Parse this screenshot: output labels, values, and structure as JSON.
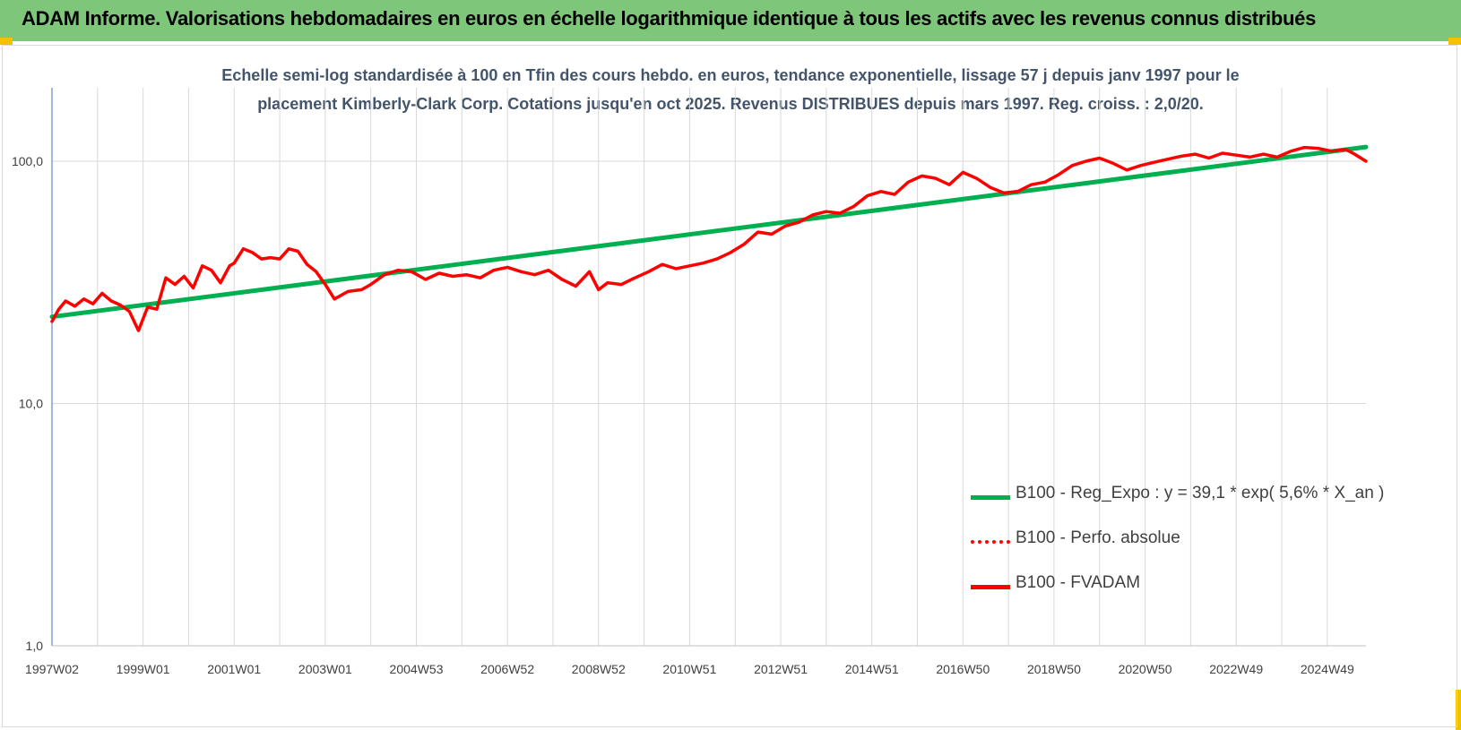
{
  "header": {
    "title": "ADAM Informe. Valorisations hebdomadaires en euros en échelle logarithmique identique à tous les actifs avec les revenus connus distribués"
  },
  "chart_data": {
    "type": "line",
    "title_line1": "Echelle semi-log standardisée à 100 en Tfin des cours hebdo. en euros, tendance exponentielle, lissage 57 j depuis janv 1997 pour le",
    "title_line2": "placement Kimberly-Clark Corp. Cotations jusqu'en oct 2025. Revenus DISTRIBUES depuis mars 1997. Reg. croiss. : 2,0/20.",
    "y_scale": "log",
    "ylim": [
      1,
      100
    ],
    "y_ticks": [
      {
        "value": 1,
        "label": "1,0"
      },
      {
        "value": 10,
        "label": "10,0"
      },
      {
        "value": 100,
        "label": "100,0"
      }
    ],
    "x_ticks": [
      "1997W02",
      "1999W01",
      "2001W01",
      "2003W01",
      "2004W53",
      "2006W52",
      "2008W52",
      "2010W51",
      "2012W51",
      "2014W51",
      "2016W50",
      "2018W50",
      "2020W50",
      "2022W49",
      "2024W49"
    ],
    "x_tick_years": [
      1997.0,
      1999.0,
      2001.0,
      2003.0,
      2005.0,
      2007.0,
      2009.0,
      2011.0,
      2013.0,
      2015.0,
      2017.0,
      2019.0,
      2021.0,
      2023.0,
      2025.0
    ],
    "x_range_years": [
      1997.0,
      2025.85
    ],
    "grid": {
      "vertical": true,
      "horizontal": true
    },
    "legend_position": "bottom-right",
    "series": [
      {
        "name": "B100 - Reg_Expo : y = 39,1 * exp( 5,6% *  X_an )",
        "color": "#00b050",
        "style": "solid",
        "x": [
          1997.0,
          2025.85
        ],
        "y": [
          22.8,
          114.5
        ]
      },
      {
        "name": "B100 - Perfo. absolue",
        "color": "#ff0000",
        "style": "dotted",
        "x": [],
        "y": []
      },
      {
        "name": "B100 - FVADAM",
        "color": "#ff0000",
        "style": "solid",
        "x": [
          1997.0,
          1997.15,
          1997.3,
          1997.5,
          1997.7,
          1997.9,
          1998.1,
          1998.3,
          1998.5,
          1998.7,
          1998.9,
          1999.1,
          1999.3,
          1999.5,
          1999.7,
          1999.9,
          2000.1,
          2000.3,
          2000.5,
          2000.7,
          2000.9,
          2001.0,
          2001.2,
          2001.4,
          2001.6,
          2001.8,
          2002.0,
          2002.2,
          2002.4,
          2002.6,
          2002.8,
          2003.0,
          2003.2,
          2003.5,
          2003.8,
          2004.0,
          2004.3,
          2004.6,
          2004.9,
          2005.2,
          2005.5,
          2005.8,
          2006.1,
          2006.4,
          2006.7,
          2007.0,
          2007.3,
          2007.6,
          2007.9,
          2008.2,
          2008.5,
          2008.8,
          2009.0,
          2009.2,
          2009.5,
          2009.8,
          2010.1,
          2010.4,
          2010.7,
          2011.0,
          2011.3,
          2011.6,
          2011.9,
          2012.2,
          2012.5,
          2012.8,
          2013.1,
          2013.4,
          2013.7,
          2014.0,
          2014.3,
          2014.6,
          2014.9,
          2015.2,
          2015.5,
          2015.8,
          2016.1,
          2016.4,
          2016.7,
          2017.0,
          2017.3,
          2017.6,
          2017.9,
          2018.2,
          2018.5,
          2018.8,
          2019.1,
          2019.4,
          2019.7,
          2020.0,
          2020.3,
          2020.6,
          2020.9,
          2021.2,
          2021.5,
          2021.8,
          2022.1,
          2022.4,
          2022.7,
          2023.0,
          2023.3,
          2023.6,
          2023.9,
          2024.2,
          2024.5,
          2024.8,
          2025.1,
          2025.4,
          2025.6,
          2025.85
        ],
        "y": [
          21.8,
          24.5,
          26.5,
          25.2,
          27.0,
          25.8,
          28.5,
          26.5,
          25.5,
          24.0,
          20.0,
          25.0,
          24.5,
          33.0,
          31.0,
          33.5,
          30.0,
          37.0,
          35.5,
          31.5,
          37.0,
          38.0,
          43.5,
          42.0,
          39.5,
          40.0,
          39.5,
          43.5,
          42.5,
          37.5,
          35.0,
          31.0,
          27.0,
          29.0,
          29.5,
          31.0,
          34.0,
          35.5,
          35.0,
          32.5,
          34.5,
          33.5,
          34.0,
          33.0,
          35.5,
          36.5,
          35.0,
          34.0,
          35.5,
          32.5,
          30.5,
          35.0,
          29.5,
          31.5,
          31.0,
          33.0,
          35.0,
          37.5,
          36.0,
          37.0,
          38.0,
          39.5,
          42.0,
          45.5,
          51.0,
          50.0,
          54.0,
          56.0,
          60.0,
          62.0,
          61.0,
          65.0,
          72.0,
          75.0,
          73.0,
          82.0,
          87.0,
          85.0,
          80.0,
          90.0,
          85.0,
          78.0,
          74.0,
          75.0,
          80.0,
          82.0,
          88.0,
          96.0,
          100.0,
          103.0,
          98.0,
          92.0,
          96.0,
          99.0,
          102.0,
          105.0,
          107.0,
          103.0,
          108.0,
          106.0,
          104.0,
          107.0,
          104.0,
          110.0,
          114.0,
          113.0,
          110.0,
          112.0,
          107.0,
          100.0
        ]
      }
    ]
  }
}
